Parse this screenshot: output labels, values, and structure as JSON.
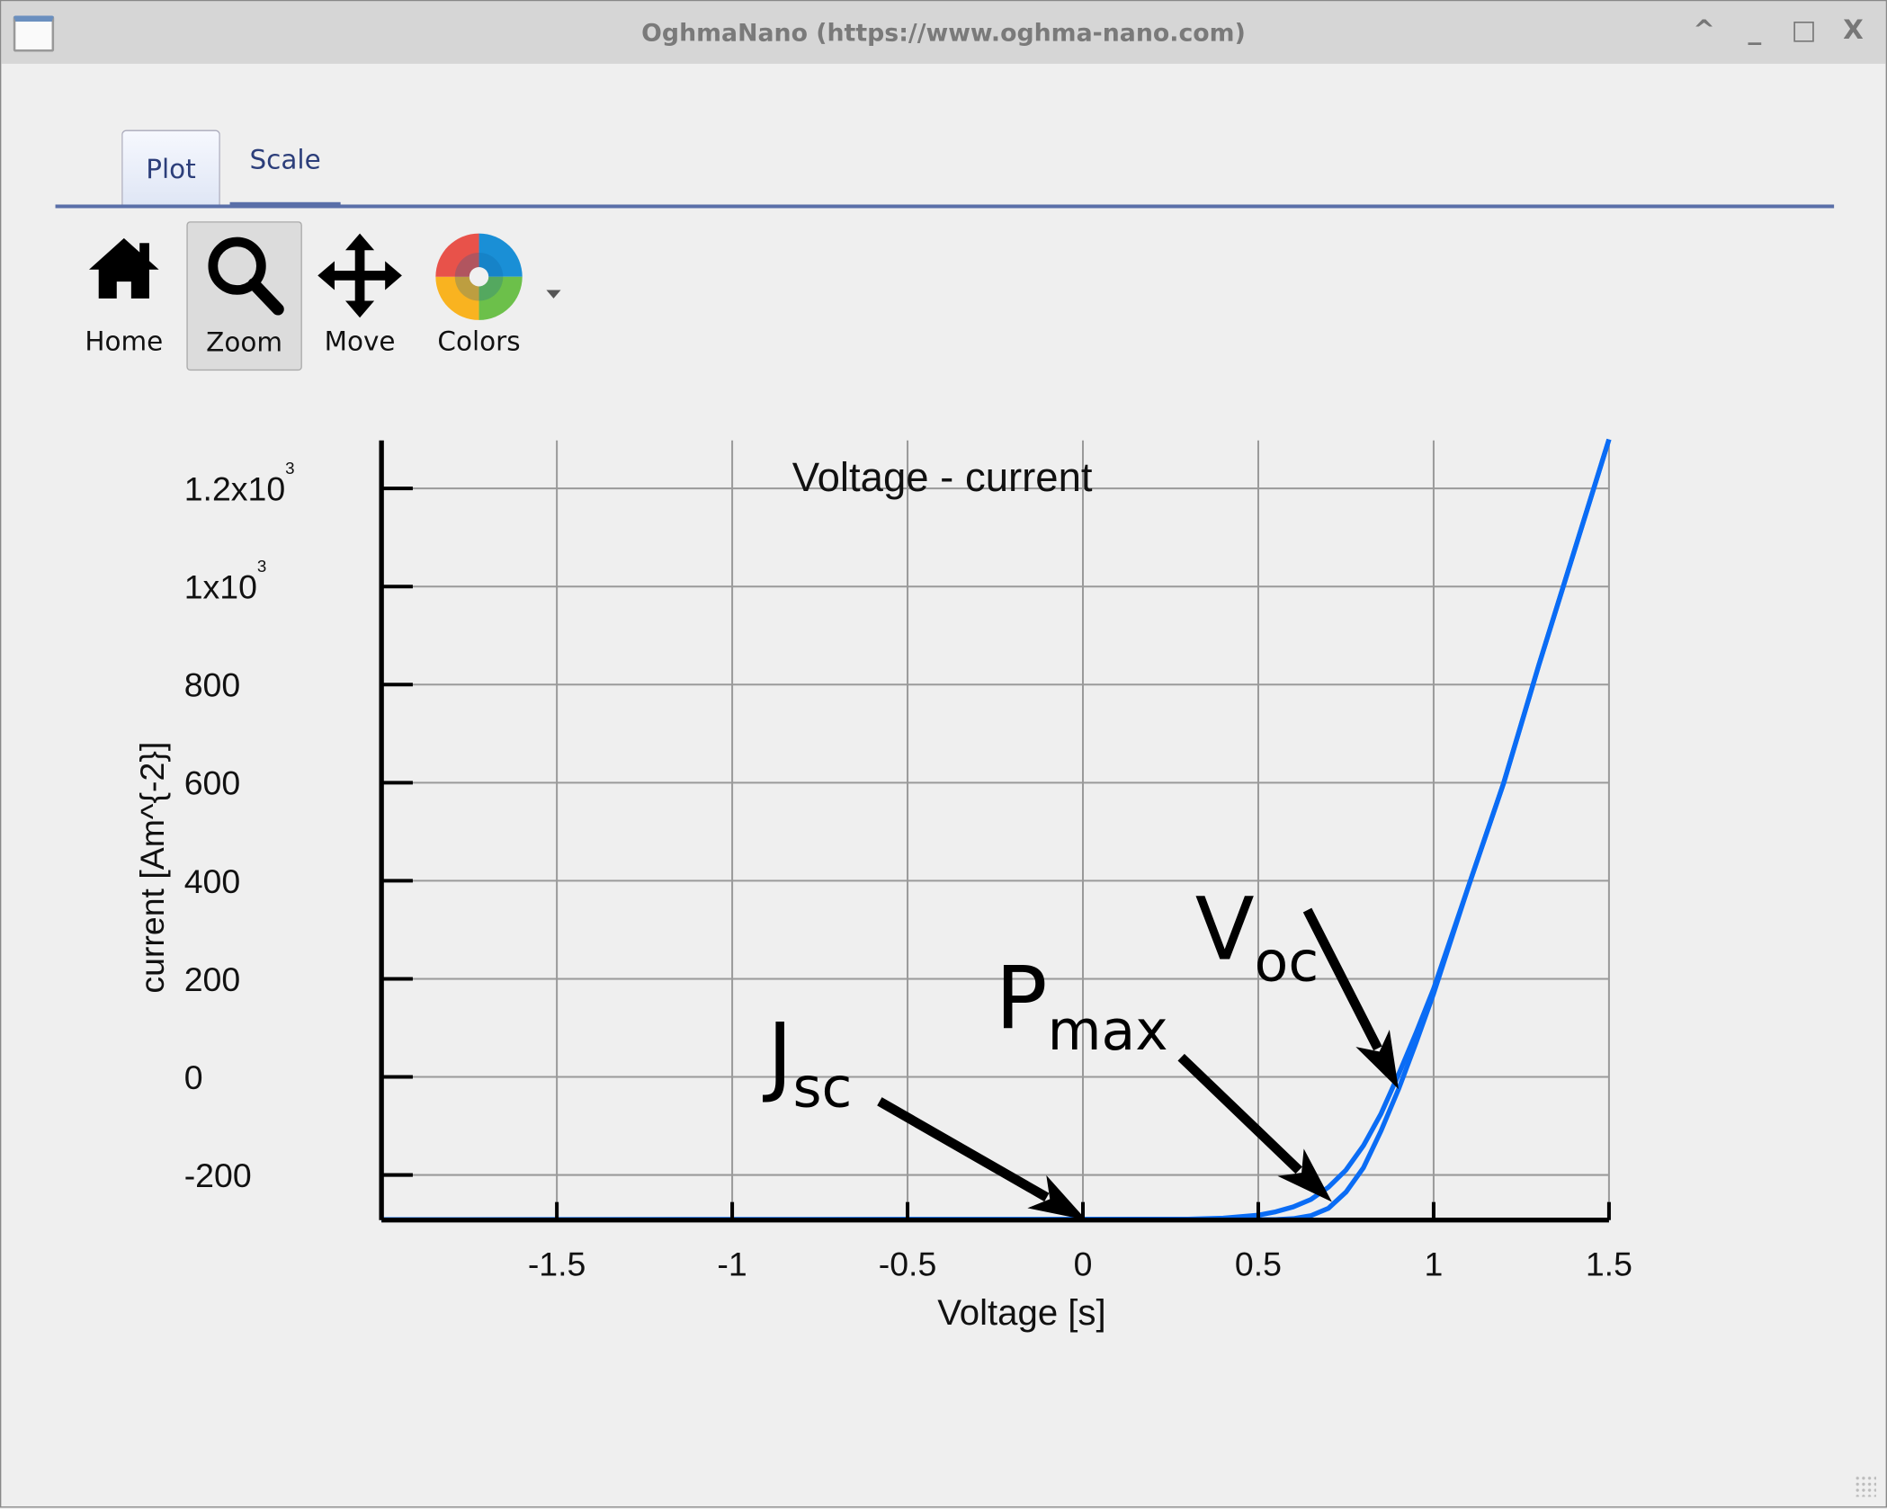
{
  "window": {
    "title": "OghmaNano (https://www.oghma-nano.com)",
    "controls": [
      "^",
      "_",
      "□",
      "X"
    ]
  },
  "tabs": [
    {
      "label": "Plot",
      "active": true
    },
    {
      "label": "Scale",
      "active": false
    }
  ],
  "toolbar": [
    {
      "label": "Home",
      "icon": "home-icon"
    },
    {
      "label": "Zoom",
      "icon": "zoom-icon",
      "active": true
    },
    {
      "label": "Move",
      "icon": "move-icon"
    },
    {
      "label": "Colors",
      "icon": "color-wheel-icon"
    }
  ],
  "chart_data": {
    "type": "line",
    "title": "Voltage - current",
    "xlabel": "Voltage [s]",
    "ylabel": "current [Am^{-2}]",
    "xlim": [
      -2,
      1.5
    ],
    "ylim": [
      -292,
      1298
    ],
    "grid": true,
    "line_color": "#0a6cf5",
    "x_ticks": [
      {
        "v": -1.5,
        "label": "-1.5"
      },
      {
        "v": -1,
        "label": "-1"
      },
      {
        "v": -0.5,
        "label": "-0.5"
      },
      {
        "v": 0,
        "label": "0"
      },
      {
        "v": 0.5,
        "label": "0.5"
      },
      {
        "v": 1,
        "label": "1"
      },
      {
        "v": 1.5,
        "label": "1.5"
      }
    ],
    "y_ticks": [
      {
        "v": -200,
        "label": "-200"
      },
      {
        "v": 0,
        "label": "0"
      },
      {
        "v": 200,
        "label": "200"
      },
      {
        "v": 400,
        "label": "400"
      },
      {
        "v": 600,
        "label": "600"
      },
      {
        "v": 800,
        "label": "800"
      },
      {
        "v": 1000,
        "label": "1x10",
        "sup": "3"
      },
      {
        "v": 1200,
        "label": "1.2x10",
        "sup": "3"
      }
    ],
    "x": [
      -2,
      0.3,
      0.4,
      0.5,
      0.55,
      0.6,
      0.65,
      0.7,
      0.75,
      0.8,
      0.85,
      0.9,
      0.95,
      1.0,
      1.1,
      1.2,
      1.3,
      1.4,
      1.5
    ],
    "series": [
      {
        "values": [
          -291,
          -290,
          -288,
          -282,
          -275,
          -265,
          -250,
          -225,
          -190,
          -140,
          -75,
          5,
          90,
          180,
          390,
          600,
          840,
          1070,
          1300
        ]
      },
      {
        "values": [
          -291,
          -291,
          -291,
          -291,
          -291,
          -289,
          -283,
          -268,
          -235,
          -185,
          -110,
          -25,
          70,
          170,
          390,
          600,
          840,
          1070,
          1300
        ]
      }
    ],
    "annotations": [
      {
        "main": "J",
        "sub": "sc",
        "label_at": [
          -0.9,
          -16
        ],
        "arrow_from": [
          -0.58,
          -50
        ],
        "arrow_to": [
          0.01,
          -292
        ]
      },
      {
        "main": "P",
        "sub": "max",
        "label_at": [
          -0.25,
          100
        ],
        "arrow_from": [
          0.28,
          40
        ],
        "arrow_to": [
          0.71,
          -255
        ]
      },
      {
        "main": "V",
        "sub": "oc",
        "label_at": [
          0.32,
          240
        ],
        "arrow_from": [
          0.64,
          340
        ],
        "arrow_to": [
          0.9,
          -25
        ]
      }
    ]
  }
}
